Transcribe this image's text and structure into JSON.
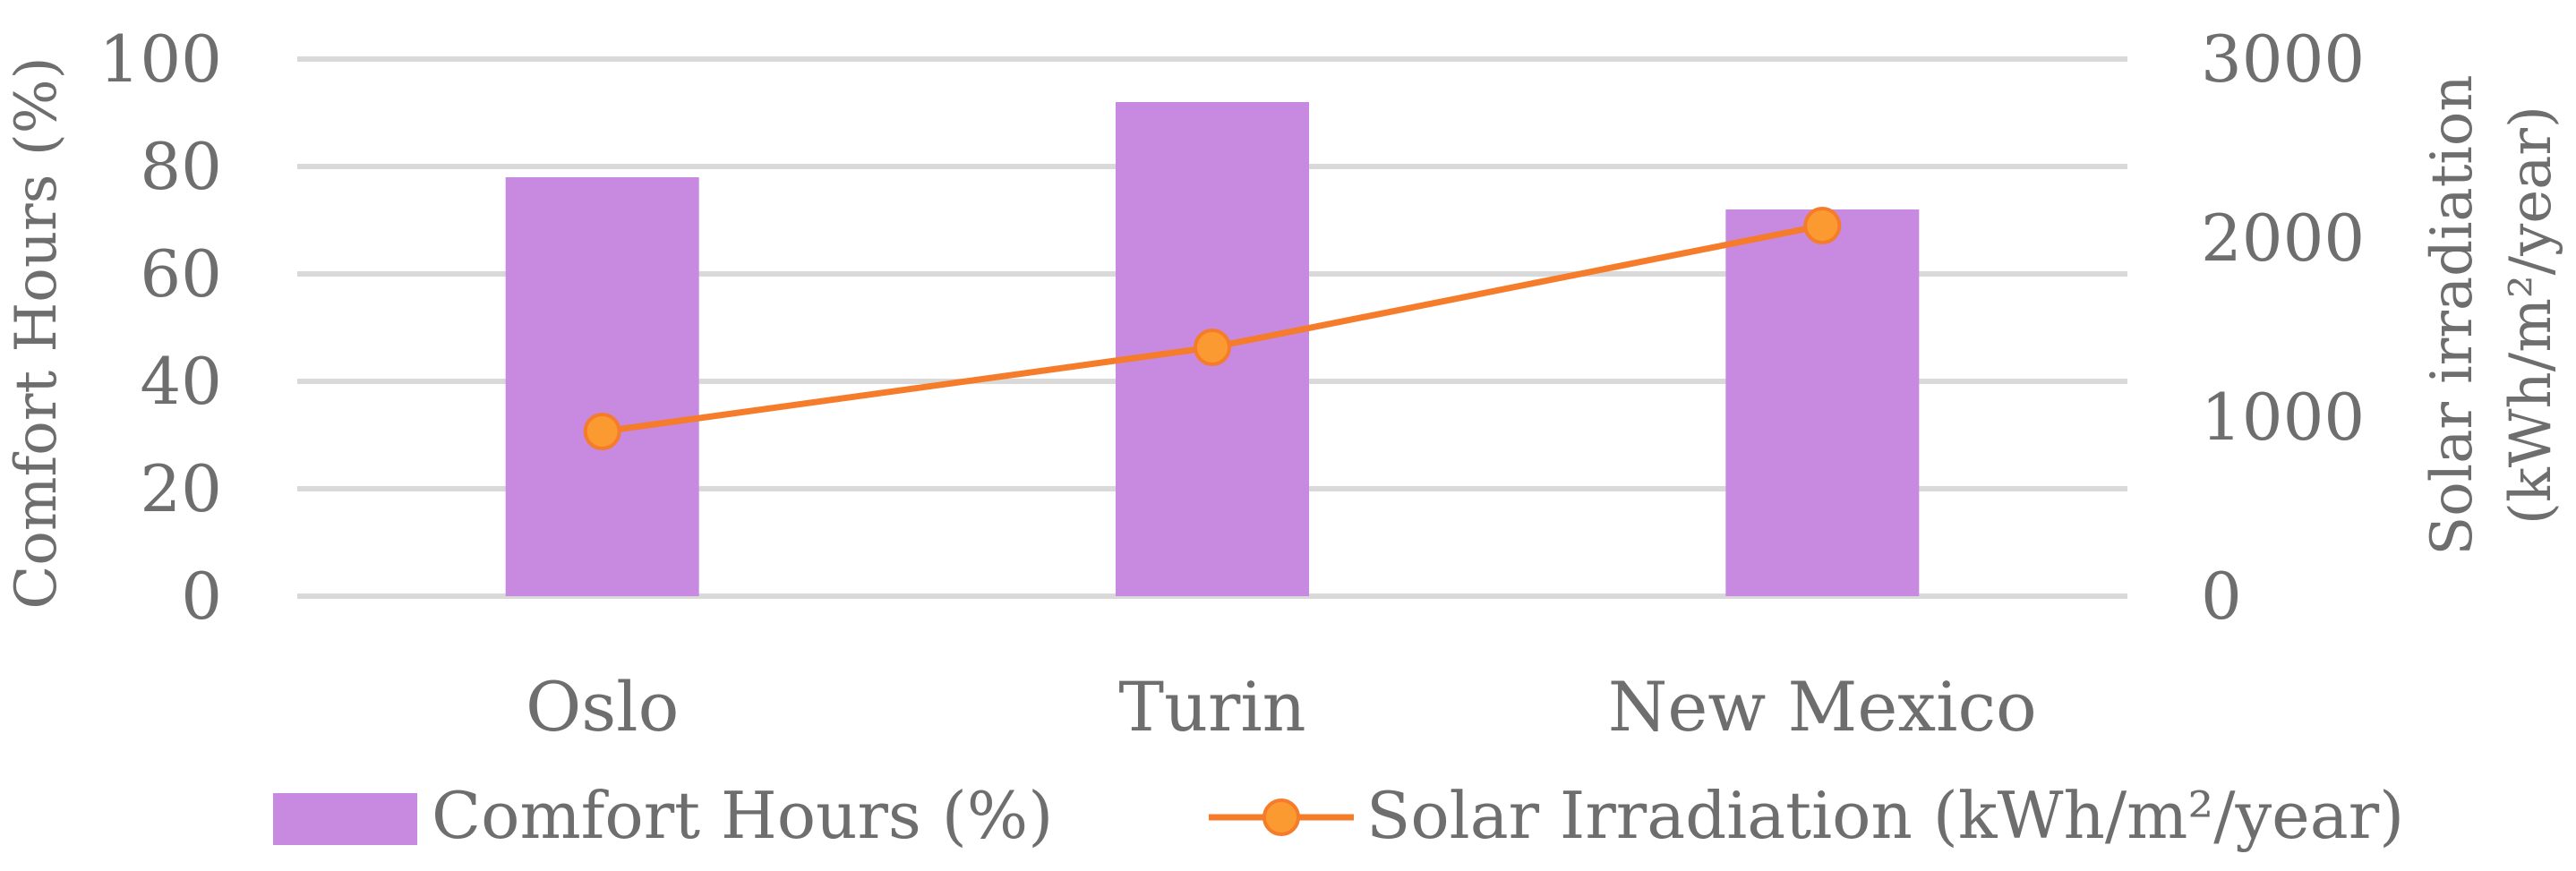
{
  "chart_data": {
    "type": "bar+line",
    "categories": [
      "Oslo",
      "Turin",
      "New Mexico"
    ],
    "series": [
      {
        "name": "Comfort Hours (%)",
        "type": "bar",
        "axis": "left",
        "values": [
          78,
          92,
          72
        ],
        "color": "#c78ae0"
      },
      {
        "name": "Solar Irradiation (kWh/m²/year)",
        "type": "line",
        "axis": "right",
        "values": [
          920,
          1390,
          2070
        ],
        "color": "#f57c2a",
        "marker_color": "#fb9a30"
      }
    ],
    "y_left": {
      "label": "Comfort Hours (%)",
      "lim": [
        0,
        100
      ],
      "ticks": [
        "0",
        "20",
        "40",
        "60",
        "80",
        "100"
      ]
    },
    "y_right": {
      "label_line1": "Solar irradiation",
      "label_line2": "(kWh/m²/year)",
      "lim": [
        0,
        3000
      ],
      "ticks": [
        "0",
        "1000",
        "2000",
        "3000"
      ]
    },
    "grid": true,
    "legend_position": "bottom"
  }
}
